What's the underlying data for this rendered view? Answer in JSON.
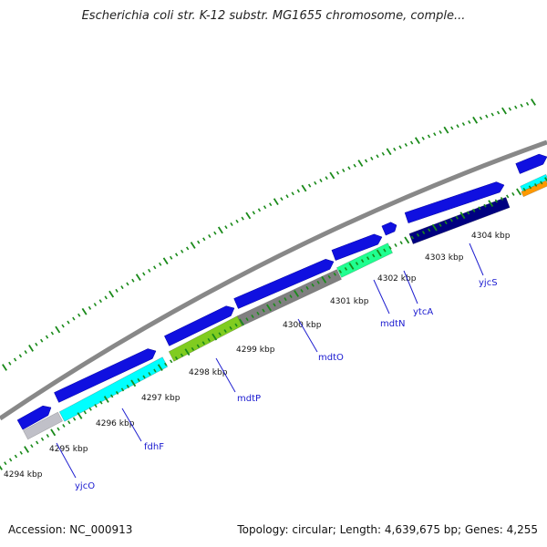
{
  "title": "Escherichia coli str. K-12 substr. MG1655 chromosome, comple...",
  "footer": {
    "accession": "Accession: NC_000913",
    "stats": "Topology: circular; Length: 4,639,675 bp; Genes: 4,255"
  },
  "kbp_labels": [
    "4294 kbp",
    "4295 kbp",
    "4296 kbp",
    "4297 kbp",
    "4298 kbp",
    "4299 kbp",
    "4300 kbp",
    "4301 kbp",
    "4302 kbp",
    "4303 kbp",
    "4304 kbp"
  ],
  "gene_labels": [
    "yjcO",
    "fdhF",
    "mdtP",
    "mdtO",
    "mdtN",
    "ytcA",
    "yjcS"
  ],
  "colors": {
    "backbone": "#888888",
    "gene_strand": "#1010e0",
    "tick": "#1a8a1a",
    "label_line": "#2020d0"
  },
  "feature_colors": [
    "#c0c0c8",
    "#00ffff",
    "#80cc20",
    "#808080",
    "#20ff90",
    "#000080",
    "#ff9900"
  ]
}
